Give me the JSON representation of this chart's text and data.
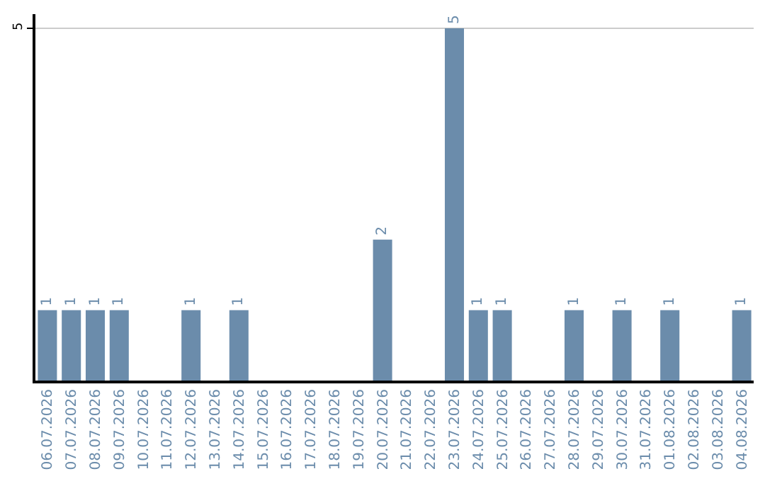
{
  "chart_data": {
    "type": "bar",
    "categories": [
      "06.07.2026",
      "07.07.2026",
      "08.07.2026",
      "09.07.2026",
      "10.07.2026",
      "11.07.2026",
      "12.07.2026",
      "13.07.2026",
      "14.07.2026",
      "15.07.2026",
      "16.07.2026",
      "17.07.2026",
      "18.07.2026",
      "19.07.2026",
      "20.07.2026",
      "21.07.2026",
      "22.07.2026",
      "23.07.2026",
      "24.07.2026",
      "25.07.2026",
      "26.07.2026",
      "27.07.2026",
      "28.07.2026",
      "29.07.2026",
      "30.07.2026",
      "31.07.2026",
      "01.08.2026",
      "02.08.2026",
      "03.08.2026",
      "04.08.2026"
    ],
    "values": [
      1,
      1,
      1,
      1,
      0,
      0,
      1,
      0,
      1,
      0,
      0,
      0,
      0,
      0,
      2,
      0,
      0,
      5,
      1,
      1,
      0,
      0,
      1,
      0,
      1,
      0,
      1,
      0,
      0,
      1
    ],
    "value_labels": [
      "1",
      "1",
      "1",
      "1",
      null,
      null,
      "1",
      null,
      "1",
      null,
      null,
      null,
      null,
      null,
      "2",
      null,
      null,
      "5",
      "1",
      "1",
      null,
      null,
      "1",
      null,
      "1",
      null,
      "1",
      null,
      null,
      "1"
    ],
    "color": "#6b8cab",
    "ylim": [
      0,
      5.2
    ],
    "yticks": [
      5
    ],
    "grid": "y",
    "legend": false
  }
}
